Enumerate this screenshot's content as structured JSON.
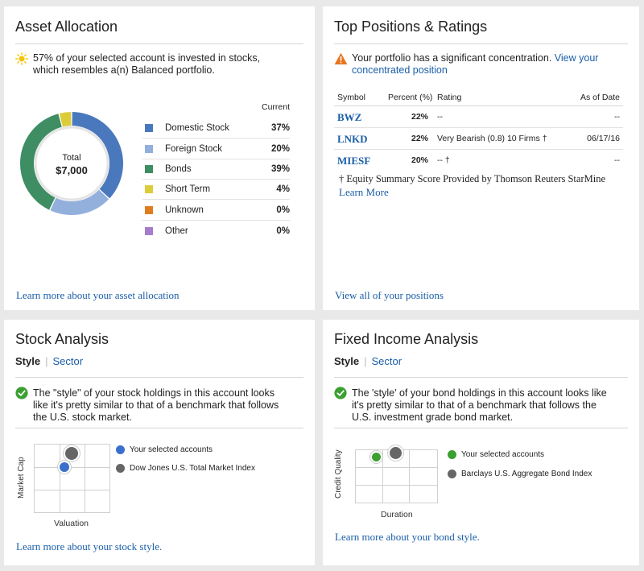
{
  "asset_allocation": {
    "title": "Asset Allocation",
    "message": "57% of your selected account is invested in stocks, which resembles a(n) Balanced portfolio.",
    "donut_center_label": "Total",
    "donut_center_value": "$7,000",
    "current_header": "Current",
    "rows": [
      {
        "label": "Domestic Stock",
        "pct": "37%",
        "value": 37,
        "color": "#4a78bd"
      },
      {
        "label": "Foreign Stock",
        "pct": "20%",
        "value": 20,
        "color": "#93b0dd"
      },
      {
        "label": "Bonds",
        "pct": "39%",
        "value": 39,
        "color": "#3e8d63"
      },
      {
        "label": "Short Term",
        "pct": "4%",
        "value": 4,
        "color": "#dccc3a"
      },
      {
        "label": "Unknown",
        "pct": "0%",
        "value": 0,
        "color": "#e07d1f"
      },
      {
        "label": "Other",
        "pct": "0%",
        "value": 0,
        "color": "#a57dcc"
      }
    ],
    "learn_more": "Learn more about your asset allocation"
  },
  "top_positions": {
    "title": "Top Positions & Ratings",
    "warning_text": "Your portfolio has a significant concentration.",
    "warning_link": "View your concentrated position",
    "headers": {
      "symbol": "Symbol",
      "percent": "Percent (%)",
      "rating": "Rating",
      "date": "As of Date"
    },
    "rows": [
      {
        "symbol": "BWZ",
        "percent": "22%",
        "rating": "--",
        "date": "--"
      },
      {
        "symbol": "LNKD",
        "percent": "22%",
        "rating": "Very Bearish (0.8) 10 Firms †",
        "date": "06/17/16"
      },
      {
        "symbol": "MIESF",
        "percent": "20%",
        "rating": "-- †",
        "date": "--"
      }
    ],
    "footnote": "† Equity Summary Score Provided by Thomson Reuters StarMine",
    "footnote_link": "Learn More",
    "view_all": "View all of your positions"
  },
  "stock_analysis": {
    "title": "Stock Analysis",
    "tab_style": "Style",
    "tab_sector": "Sector",
    "message": "The \"style\" of your stock holdings in this account looks like it's pretty similar to that of a benchmark that follows the U.S. stock market.",
    "y_axis": "Market Cap",
    "x_axis": "Valuation",
    "legend_selected": "Your selected accounts",
    "legend_benchmark": "Dow Jones U.S. Total Market Index",
    "selected_color": "#3a6fcc",
    "benchmark_color": "#666666",
    "learn_more": "Learn more about your stock style."
  },
  "fixed_income": {
    "title": "Fixed Income Analysis",
    "tab_style": "Style",
    "tab_sector": "Sector",
    "message": "The 'style' of your bond holdings in this account looks like it's pretty similar to that of a benchmark that follows the U.S. investment grade bond market.",
    "y_axis": "Credit Quality",
    "x_axis": "Duration",
    "legend_selected": "Your selected accounts",
    "legend_benchmark": "Barclays U.S. Aggregate Bond Index",
    "selected_color": "#3aa030",
    "benchmark_color": "#666666",
    "learn_more": "Learn more about your bond style."
  }
}
